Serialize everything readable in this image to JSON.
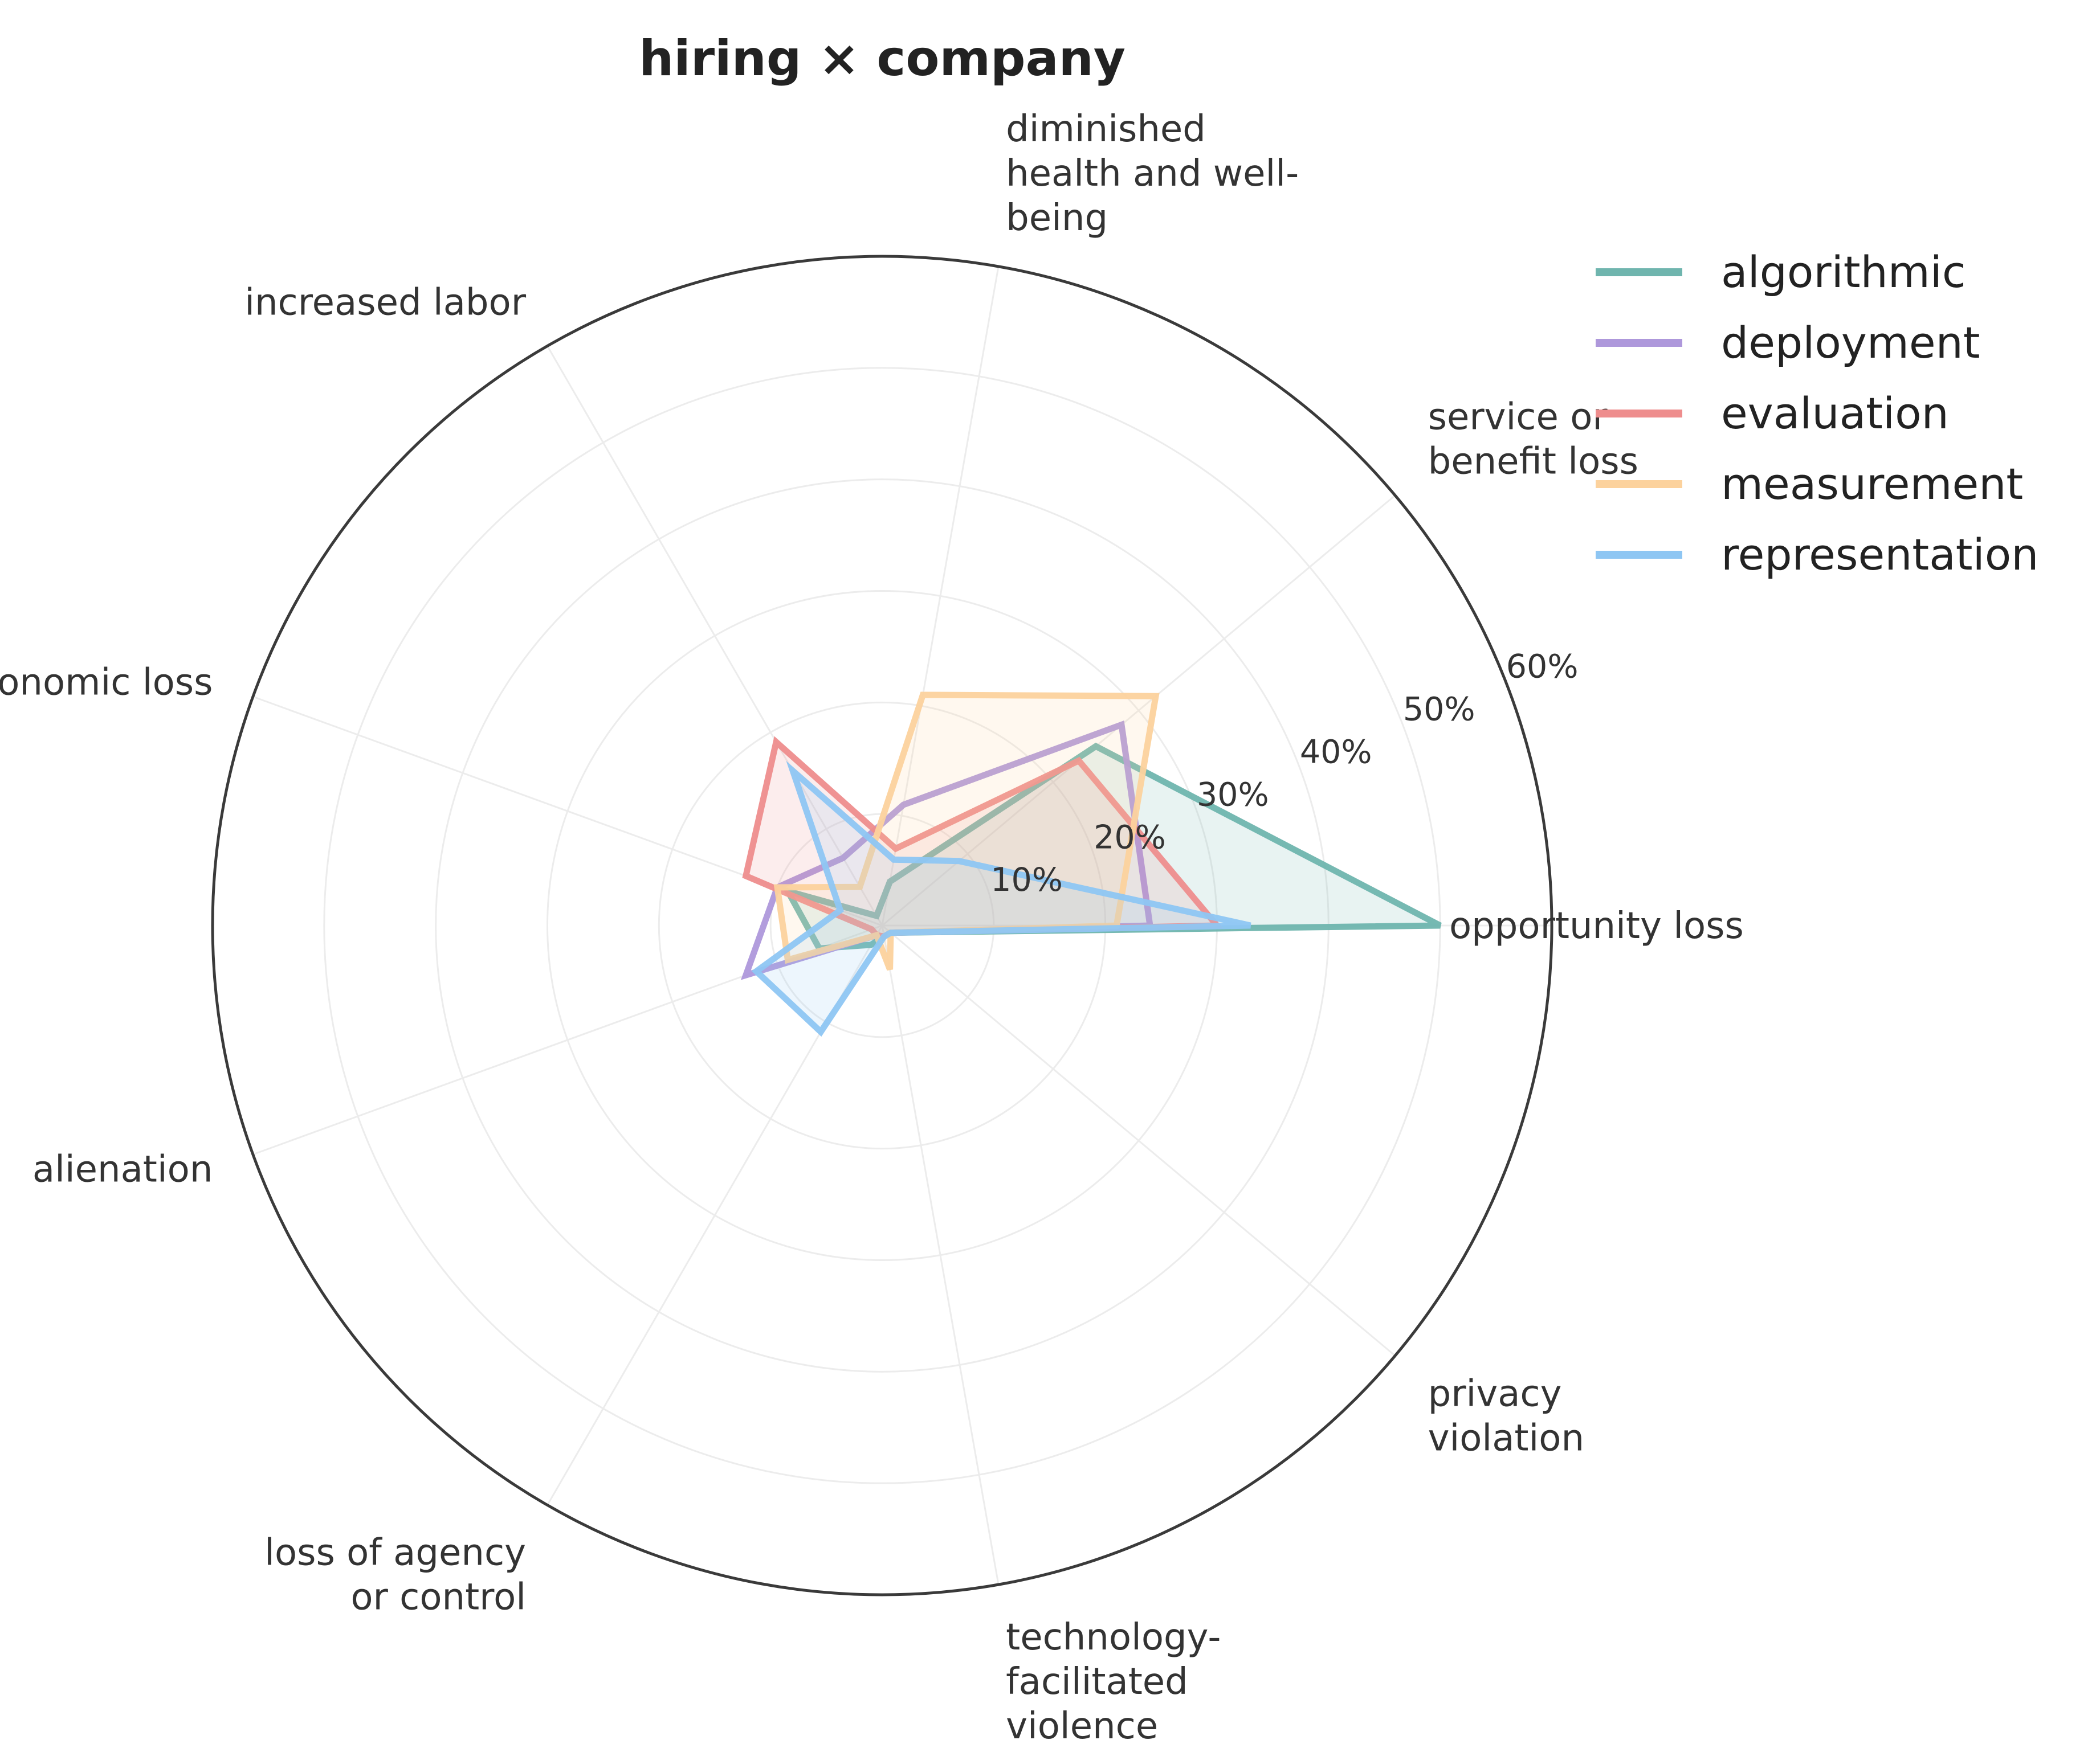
{
  "chart_data": {
    "type": "radar",
    "title": "hiring × company",
    "categories": [
      "opportunity loss",
      "service or\nbenefit loss",
      "diminished\nhealth and well-\nbeing",
      "increased labor",
      "economic loss",
      "alienation",
      "loss of agency\nor control",
      "technology-\nfacilitated\nviolence",
      "privacy\nviolation"
    ],
    "radial_ticks": [
      10,
      20,
      30,
      40,
      50,
      60
    ],
    "radial_tick_labels": [
      "10%",
      "20%",
      "30%",
      "40%",
      "50%",
      "60%"
    ],
    "rlim": [
      0,
      60
    ],
    "legend_position": "upper-right-outside",
    "series": [
      {
        "name": "algorithmic",
        "color": "#6fb5ae",
        "fill": true,
        "values": [
          50,
          25,
          4,
          1,
          9,
          6,
          2,
          1,
          1
        ]
      },
      {
        "name": "deployment",
        "color": "#ae98db",
        "fill": false,
        "values": [
          24,
          28,
          11,
          7,
          10,
          13,
          1,
          1,
          1
        ]
      },
      {
        "name": "evaluation",
        "color": "#ee8d8d",
        "fill": true,
        "values": [
          30,
          23,
          7,
          19,
          13,
          1,
          1,
          1,
          1
        ]
      },
      {
        "name": "measurement",
        "color": "#fcd29d",
        "fill": true,
        "values": [
          21,
          32,
          21,
          4,
          10,
          9,
          1,
          4,
          1
        ]
      },
      {
        "name": "representation",
        "color": "#8ec6f3",
        "fill": true,
        "values": [
          33,
          9,
          6,
          16,
          4,
          12,
          11,
          1,
          1
        ]
      }
    ]
  }
}
